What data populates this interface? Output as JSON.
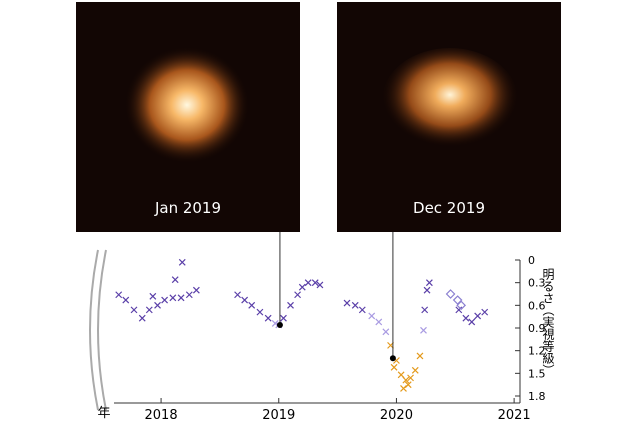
{
  "chart_data": {
    "type": "scatter",
    "images": [
      {
        "caption": "Jan 2019",
        "x": 2019.01
      },
      {
        "caption": "Dec 2019",
        "x": 2019.97
      }
    ],
    "x_label": "年",
    "y_label": "明るさ（実視等級）",
    "xlim": [
      2017.6,
      2021.05
    ],
    "xticks": [
      2018,
      2019,
      2020,
      2021
    ],
    "ylim": [
      0,
      1.8
    ],
    "y_inverted": true,
    "yticks": [
      0,
      0.3,
      0.6,
      0.9,
      1.2,
      1.5,
      1.8
    ],
    "series": [
      {
        "color": "#5a3fa8",
        "marker": "x",
        "x": [
          2017.64,
          2017.7,
          2017.77,
          2017.84,
          2017.9,
          2017.97,
          2018.03,
          2018.1,
          2018.17,
          2018.24,
          2018.3,
          2018.18,
          2018.12,
          2017.93,
          2018.65,
          2018.71,
          2018.77,
          2018.84,
          2018.91,
          2019.04,
          2019.1,
          2019.16,
          2019.2,
          2019.25,
          2019.31,
          2019.35,
          2019.58,
          2019.65,
          2019.71,
          2020.24,
          2020.26,
          2020.28,
          2020.53,
          2020.59,
          2020.64,
          2020.69,
          2020.75
        ],
        "values": [
          0.46,
          0.53,
          0.66,
          0.77,
          0.66,
          0.6,
          0.53,
          0.5,
          0.5,
          0.46,
          0.4,
          0.03,
          0.26,
          0.48,
          0.46,
          0.53,
          0.6,
          0.69,
          0.77,
          0.77,
          0.6,
          0.46,
          0.36,
          0.3,
          0.3,
          0.33,
          0.57,
          0.6,
          0.66,
          0.66,
          0.4,
          0.3,
          0.66,
          0.77,
          0.82,
          0.74,
          0.69
        ]
      },
      {
        "color": "#a99be2",
        "marker": "x",
        "x": [
          2018.97,
          2019.0,
          2019.79,
          2019.85,
          2019.91,
          2020.23
        ],
        "values": [
          0.84,
          0.86,
          0.74,
          0.82,
          0.95,
          0.93
        ]
      },
      {
        "color": "#e49a1c",
        "marker": "x",
        "x": [
          2019.95,
          2020.0,
          2020.04,
          2020.08,
          2020.12,
          2020.16,
          2020.2,
          2019.98,
          2020.06,
          2020.1
        ],
        "values": [
          1.13,
          1.33,
          1.52,
          1.59,
          1.56,
          1.46,
          1.27,
          1.42,
          1.7,
          1.65
        ]
      },
      {
        "color": "#8a7fd0",
        "marker": "diamond",
        "x": [
          2020.46,
          2020.52,
          2020.55
        ],
        "values": [
          0.45,
          0.53,
          0.6
        ]
      }
    ],
    "highlight_points": {
      "x": [
        2019.01,
        2019.97
      ],
      "values": [
        0.86,
        1.3
      ]
    }
  }
}
